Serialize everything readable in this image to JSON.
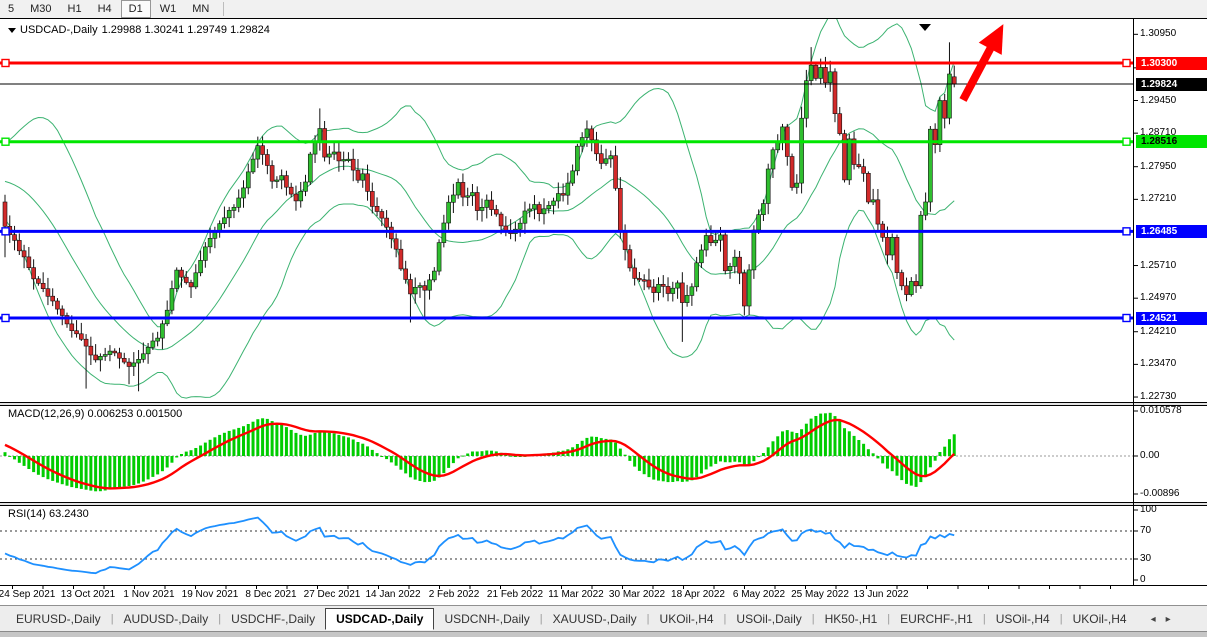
{
  "toolbar": {
    "timeframes": [
      "5",
      "M30",
      "H1",
      "H4",
      "D1",
      "W1",
      "MN"
    ],
    "active": "D1"
  },
  "chart": {
    "title": "USDCAD-,Daily",
    "ohlc_text": "1.29988 1.30241 1.29749 1.29824",
    "open": 1.29988,
    "high": 1.30241,
    "low": 1.29749,
    "close": 1.29824
  },
  "macd_panel": {
    "label": "MACD(12,26,9) 0.006253 0.001500",
    "scale_labels": [
      "0.010578",
      "0.00",
      "-0.00896"
    ]
  },
  "rsi_panel": {
    "label": "RSI(14) 63.2430",
    "scale_labels": [
      "100",
      "70",
      "30",
      "0"
    ]
  },
  "price_scale": {
    "ticks": [
      1.3095,
      1.3019,
      1.2945,
      1.2871,
      1.2795,
      1.2721,
      1.2571,
      1.2497,
      1.2421,
      1.2347,
      1.2273
    ]
  },
  "hlines": [
    {
      "name": "resistance-line",
      "price": 1.303,
      "label": "1.30300",
      "color": "#FF0000",
      "tag_bg": "#FF0000",
      "tag_fg": "#FFFFFF",
      "thickness": 3
    },
    {
      "name": "support-green-line",
      "price": 1.28516,
      "label": "1.28516",
      "color": "#00E600",
      "tag_bg": "#00E600",
      "tag_fg": "#000000",
      "thickness": 3
    },
    {
      "name": "support-blue-line-1",
      "price": 1.26485,
      "label": "1.26485",
      "color": "#0000FF",
      "tag_bg": "#0000FF",
      "tag_fg": "#FFFFFF",
      "thickness": 3
    },
    {
      "name": "support-blue-line-2",
      "price": 1.24521,
      "label": "1.24521",
      "color": "#0000FF",
      "tag_bg": "#0000FF",
      "tag_fg": "#FFFFFF",
      "thickness": 3
    }
  ],
  "current_price_line": {
    "price": 1.29824,
    "label": "1.29824",
    "color": "#000000",
    "tag_bg": "#000000",
    "tag_fg": "#FFFFFF"
  },
  "x_axis": {
    "dates": [
      "24 Sep 2021",
      "13 Oct 2021",
      "1 Nov 2021",
      "19 Nov 2021",
      "8 Dec 2021",
      "27 Dec 2021",
      "14 Jan 2022",
      "2 Feb 2022",
      "21 Feb 2022",
      "11 Mar 2022",
      "30 Mar 2022",
      "18 Apr 2022",
      "6 May 2022",
      "25 May 2022",
      "13 Jun 2022"
    ]
  },
  "tabs": {
    "items": [
      "EURUSD-,Daily",
      "AUDUSD-,Daily",
      "USDCHF-,Daily",
      "USDCAD-,Daily",
      "USDCNH-,Daily",
      "XAUUSD-,Daily",
      "UKOil-,H4",
      "USOil-,Daily",
      "HK50-,H1",
      "EURCHF-,H1",
      "USOil-,H4",
      "UKOil-,H4"
    ],
    "active": "USDCAD-,Daily",
    "nav_left": "◂",
    "nav_right": "▸"
  },
  "colors": {
    "bull": "#2FBE2F",
    "bear": "#D22A2A",
    "candle_stroke": "#111111",
    "bollinger": "#3CB371",
    "macd_bar": "#00CC00",
    "macd_signal": "#FF0000",
    "rsi_line": "#1E90FF",
    "arrow": "#FF0000"
  },
  "chart_data": {
    "type": "candlestick",
    "symbol": "USDCAD",
    "timeframe": "Daily",
    "candle_count": 200,
    "indicators": {
      "bollinger": {
        "period": 20,
        "deviation": 2
      },
      "macd": {
        "fast": 12,
        "slow": 26,
        "signal": 9,
        "value": 0.006253,
        "signal_value": 0.0015
      },
      "rsi": {
        "period": 14,
        "value": 63.243
      }
    },
    "macd_axis": {
      "top_value": 0.010578,
      "bottom_value": -0.00896
    },
    "rsi_axis": {
      "levels": [
        100,
        70,
        30,
        0
      ],
      "dashed_levels": [
        70,
        30
      ]
    },
    "pre_anchors": [
      [
        0,
        1.264
      ],
      [
        17,
        1.283
      ],
      [
        24,
        1.2715
      ]
    ],
    "price_anchors": [
      [
        0,
        1.266
      ],
      [
        2,
        1.2625
      ],
      [
        4,
        1.259
      ],
      [
        6,
        1.2545
      ],
      [
        9,
        1.2505
      ],
      [
        11,
        1.2475
      ],
      [
        13,
        1.244
      ],
      [
        15,
        1.2415
      ],
      [
        17,
        1.2385
      ],
      [
        19,
        1.236
      ],
      [
        22,
        1.2375
      ],
      [
        24,
        1.2365
      ],
      [
        26,
        1.234
      ],
      [
        28,
        1.236
      ],
      [
        30,
        1.239
      ],
      [
        32,
        1.241
      ],
      [
        34,
        1.247
      ],
      [
        36,
        1.2565
      ],
      [
        37,
        1.2545
      ],
      [
        39,
        1.2525
      ],
      [
        41,
        1.2585
      ],
      [
        43,
        1.2635
      ],
      [
        45,
        1.2665
      ],
      [
        48,
        1.2705
      ],
      [
        50,
        1.275
      ],
      [
        52,
        1.2815
      ],
      [
        53,
        1.2845
      ],
      [
        55,
        1.2795
      ],
      [
        56,
        1.276
      ],
      [
        58,
        1.2778
      ],
      [
        59,
        1.2745
      ],
      [
        61,
        1.2715
      ],
      [
        63,
        1.276
      ],
      [
        64,
        1.2825
      ],
      [
        66,
        1.288
      ],
      [
        67,
        1.282
      ],
      [
        69,
        1.2825
      ],
      [
        70,
        1.2805
      ],
      [
        72,
        1.2815
      ],
      [
        74,
        1.2765
      ],
      [
        75,
        1.2775
      ],
      [
        77,
        1.2705
      ],
      [
        79,
        1.2675
      ],
      [
        80,
        1.2655
      ],
      [
        82,
        1.2605
      ],
      [
        83,
        1.2565
      ],
      [
        85,
        1.251
      ],
      [
        87,
        1.253
      ],
      [
        88,
        1.2515
      ],
      [
        90,
        1.2555
      ],
      [
        91,
        1.262
      ],
      [
        93,
        1.2712
      ],
      [
        95,
        1.2758
      ],
      [
        96,
        1.2725
      ],
      [
        98,
        1.2738
      ],
      [
        99,
        1.2695
      ],
      [
        101,
        1.2715
      ],
      [
        103,
        1.2688
      ],
      [
        104,
        1.2658
      ],
      [
        106,
        1.2645
      ],
      [
        108,
        1.2668
      ],
      [
        109,
        1.2695
      ],
      [
        111,
        1.2712
      ],
      [
        112,
        1.2688
      ],
      [
        114,
        1.2705
      ],
      [
        116,
        1.2738
      ],
      [
        117,
        1.2728
      ],
      [
        119,
        1.2788
      ],
      [
        120,
        1.2845
      ],
      [
        122,
        1.2885
      ],
      [
        123,
        1.2855
      ],
      [
        125,
        1.28
      ],
      [
        127,
        1.2822
      ],
      [
        128,
        1.275
      ],
      [
        129,
        1.2645
      ],
      [
        131,
        1.257
      ],
      [
        132,
        1.2545
      ],
      [
        134,
        1.2535
      ],
      [
        136,
        1.2512
      ],
      [
        137,
        1.2532
      ],
      [
        139,
        1.2508
      ],
      [
        141,
        1.2528
      ],
      [
        142,
        1.249
      ],
      [
        144,
        1.252
      ],
      [
        145,
        1.2575
      ],
      [
        147,
        1.264
      ],
      [
        148,
        1.2625
      ],
      [
        150,
        1.264
      ],
      [
        151,
        1.2555
      ],
      [
        153,
        1.259
      ],
      [
        154,
        1.255
      ],
      [
        155,
        1.248
      ],
      [
        156,
        1.2565
      ],
      [
        157,
        1.2655
      ],
      [
        159,
        1.271
      ],
      [
        160,
        1.279
      ],
      [
        161,
        1.2835
      ],
      [
        162,
        1.285
      ],
      [
        163,
        1.2885
      ],
      [
        165,
        1.2745
      ],
      [
        166,
        1.276
      ],
      [
        167,
        1.2905
      ],
      [
        168,
        1.299
      ],
      [
        169,
        1.3025
      ],
      [
        170,
        1.2995
      ],
      [
        171,
        1.302
      ],
      [
        172,
        1.2985
      ],
      [
        173,
        1.301
      ],
      [
        174,
        1.2915
      ],
      [
        175,
        1.287
      ],
      [
        176,
        1.2765
      ],
      [
        177,
        1.2858
      ],
      [
        178,
        1.28
      ],
      [
        179,
        1.2795
      ],
      [
        180,
        1.278
      ],
      [
        181,
        1.2715
      ],
      [
        182,
        1.272
      ],
      [
        183,
        1.2665
      ],
      [
        184,
        1.2635
      ],
      [
        185,
        1.2595
      ],
      [
        186,
        1.2635
      ],
      [
        187,
        1.2555
      ],
      [
        188,
        1.2525
      ],
      [
        189,
        1.2505
      ],
      [
        190,
        1.2535
      ],
      [
        191,
        1.2525
      ],
      [
        192,
        1.2685
      ],
      [
        193,
        1.2715
      ],
      [
        194,
        1.288
      ],
      [
        195,
        1.2845
      ],
      [
        196,
        1.2945
      ],
      [
        197,
        1.2905
      ],
      [
        198,
        1.3005
      ],
      [
        199,
        1.29824
      ]
    ],
    "wick_high_overrides": {
      "66": 1.2927,
      "122": 1.29,
      "169": 1.3066,
      "171": 1.304,
      "173": 1.3035,
      "198": 1.3077,
      "199": 1.30241
    },
    "wick_low_overrides": {
      "0": 1.259,
      "17": 1.2292,
      "26": 1.2302,
      "28": 1.2286,
      "85": 1.2442,
      "88": 1.245,
      "142": 1.2398,
      "155": 1.2458,
      "191": 1.2509,
      "199": 1.29749
    },
    "last_candle": {
      "open": 1.29988,
      "high": 1.30241,
      "low": 1.29749,
      "close": 1.29824
    },
    "annotations": {
      "arrow_up_right": true,
      "top_marker": "▼"
    }
  }
}
